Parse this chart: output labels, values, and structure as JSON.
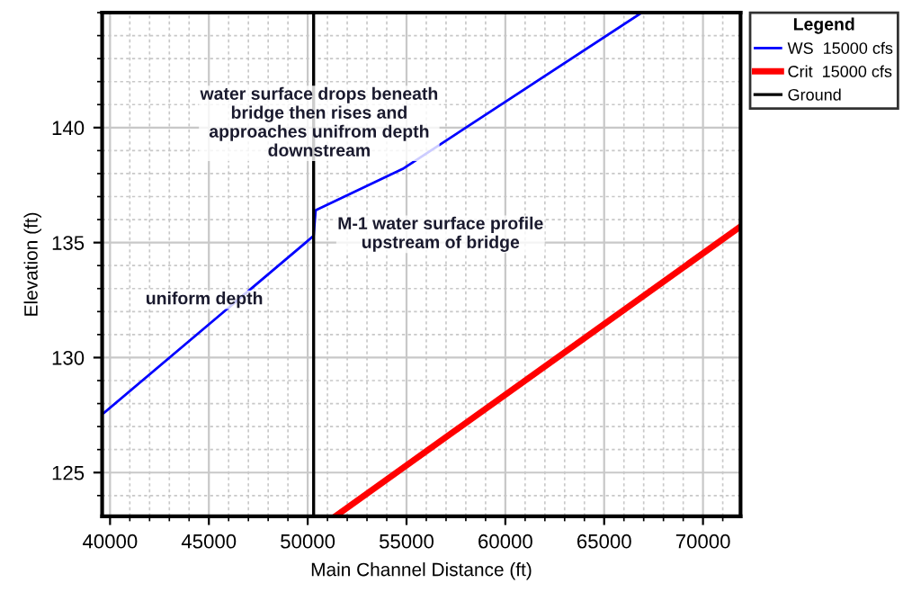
{
  "chart_data": {
    "type": "line",
    "xlabel": "Main Channel Distance (ft)",
    "ylabel": "Elevation (ft)",
    "legend_title": "Legend",
    "xlim": [
      39600,
      71900
    ],
    "ylim": [
      123.1,
      145
    ],
    "xticks": [
      40000,
      45000,
      50000,
      55000,
      60000,
      65000,
      70000
    ],
    "yticks": [
      125,
      130,
      135,
      140
    ],
    "grid": true,
    "legend": "right",
    "series": [
      {
        "name": "WS  15000 cfs",
        "color": "#0000ff",
        "line_style": "solid",
        "x": [
          39700,
          49900,
          50300,
          50400,
          54800,
          66900
        ],
        "values": [
          127.6,
          135.0,
          135.3,
          136.4,
          138.2,
          145
        ]
      },
      {
        "name": "Crit  15000 cfs",
        "color": "#ff0000",
        "line_style": "solid",
        "x": [
          51400,
          71900
        ],
        "values": [
          123.1,
          135.7
        ]
      },
      {
        "name": "Ground",
        "color": "#000000",
        "line_style": "solid",
        "x": [
          50300,
          50300
        ],
        "values": [
          123.1,
          145
        ]
      }
    ],
    "annotations": [
      "water surface drops beneath\nbridge then rises and\napproaches unifrom depth\ndownstream",
      "uniform depth",
      "M-1 water surface profile\nupstream of bridge"
    ]
  }
}
